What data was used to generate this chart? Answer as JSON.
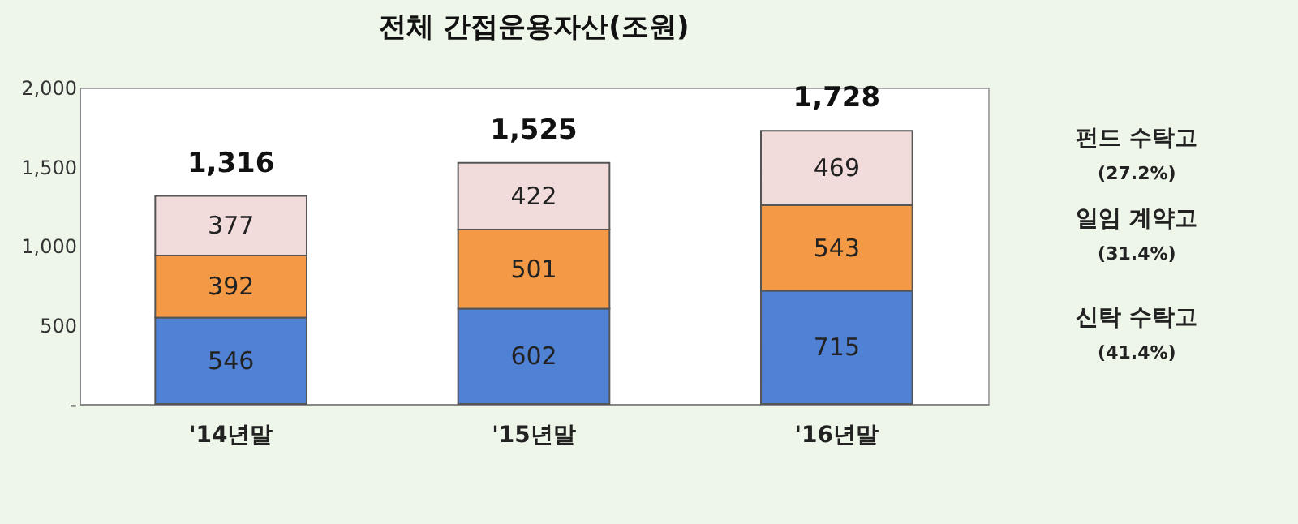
{
  "chart_data": {
    "type": "bar",
    "title": "전체 간접운용자산(조원)",
    "categories": [
      "'14년말",
      "'15년말",
      "'16년말"
    ],
    "stacked": true,
    "data_labels": true,
    "series": [
      {
        "name": "신탁 수탁고",
        "color": "#4f81d4",
        "values": [
          546,
          602,
          715
        ]
      },
      {
        "name": "일임 계약고",
        "color": "#f49a46",
        "values": [
          392,
          501,
          543
        ]
      },
      {
        "name": "펀드 수탁고",
        "color": "#f2dcdb",
        "values": [
          377,
          422,
          469
        ]
      }
    ],
    "totals": [
      "1,316",
      "1,525",
      "1,728"
    ],
    "annotations": [
      "(41.4%)",
      "(31.4%)",
      "(27.2%)"
    ],
    "ylim": [
      0,
      2000
    ],
    "yticks": [
      {
        "value": 0,
        "label": "-"
      },
      500,
      {
        "value": 1000,
        "label": "1,000"
      },
      {
        "value": 1500,
        "label": "1,500"
      },
      {
        "value": 2000,
        "label": "2,000"
      }
    ],
    "grid": false,
    "legend": false
  }
}
